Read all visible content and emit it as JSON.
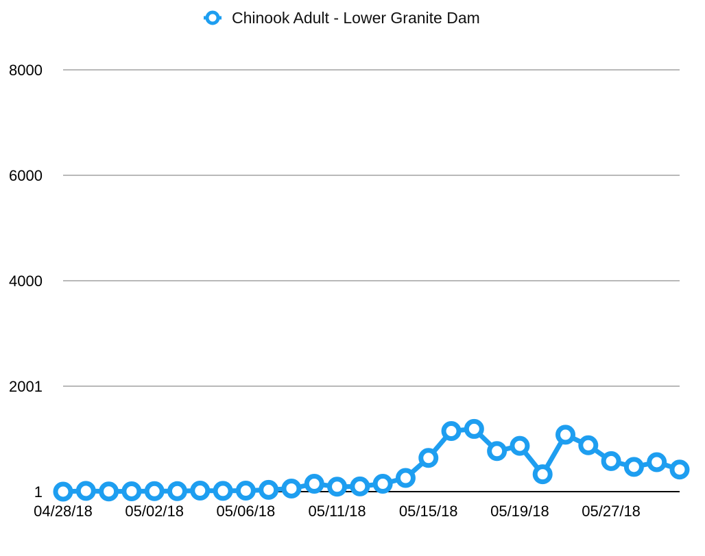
{
  "chart_data": {
    "type": "line",
    "title": "",
    "xlabel": "",
    "ylabel": "",
    "legend": {
      "position": "top-center"
    },
    "grid": true,
    "ylim": [
      1,
      8000
    ],
    "y_ticks": [
      "8000",
      "6000",
      "4000",
      "2001",
      "1"
    ],
    "y_tick_values": [
      8000,
      6000,
      4000,
      2001,
      1
    ],
    "x_tick_labels": [
      "04/28/18",
      "05/02/18",
      "05/06/18",
      "05/11/18",
      "05/15/18",
      "05/19/18",
      "05/27/18"
    ],
    "x_tick_indices": [
      0,
      4,
      8,
      12,
      16,
      20,
      24
    ],
    "series": [
      {
        "name": "Chinook Adult - Lower Granite Dam",
        "color": "#1e9ef0",
        "values": [
          1,
          15,
          5,
          8,
          10,
          10,
          20,
          15,
          20,
          35,
          60,
          150,
          95,
          100,
          150,
          260,
          640,
          1150,
          1190,
          770,
          870,
          330,
          1080,
          880,
          580,
          470,
          560,
          420
        ]
      }
    ]
  }
}
